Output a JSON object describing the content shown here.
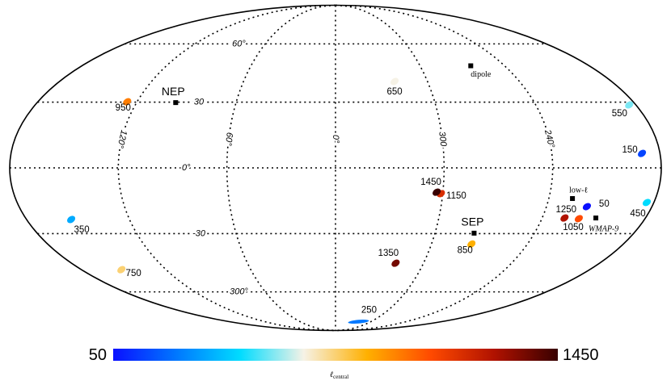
{
  "chart_data": {
    "type": "mollweide",
    "grid": true,
    "lat_ticks": [
      {
        "value": 60,
        "label": "60°"
      },
      30,
      {
        "value": 0,
        "label": "0°"
      },
      -30,
      {
        "value": -60,
        "label": "300°"
      }
    ],
    "lon_ticks": [
      {
        "value": 120,
        "label": "120°"
      },
      {
        "value": 60,
        "label": "60°"
      },
      {
        "value": 0,
        "label": "0°"
      },
      300,
      {
        "value": 240,
        "label": "240°"
      }
    ],
    "points": [
      {
        "ell": 50,
        "lon": 217,
        "lat": -17.5
      },
      {
        "ell": 150,
        "lon": 190,
        "lat": 6.5
      },
      {
        "ell": 250,
        "lon": 321,
        "lat": -80
      },
      {
        "ell": 350,
        "lon": 154,
        "lat": -23.4
      },
      {
        "ell": 450,
        "lon": 184,
        "lat": -15.6
      },
      {
        "ell": 550,
        "lon": 184,
        "lat": 28.7
      },
      {
        "ell": 650,
        "lon": 321.5,
        "lat": 40
      },
      {
        "ell": 750,
        "lon": 151.6,
        "lat": -47.8
      },
      {
        "ell": 850,
        "lon": 275,
        "lat": -35
      },
      {
        "ell": 950,
        "lon": 126,
        "lat": 30.2
      },
      {
        "ell": 1050,
        "lon": 218.5,
        "lat": -23
      },
      {
        "ell": 1150,
        "lon": 301,
        "lat": -11.6
      },
      {
        "ell": 1250,
        "lon": 227,
        "lat": -22.7
      },
      {
        "ell": 1350,
        "lon": 319,
        "lat": -44.5
      },
      {
        "ell": 1450,
        "lon": 303.5,
        "lat": -10.9
      }
    ],
    "markers": [
      {
        "label": "NEP",
        "lon": 96.4,
        "lat": 29.8
      },
      {
        "label": "SEP",
        "lon": 276.4,
        "lat": -29.8
      },
      {
        "label": "dipole",
        "lon": 264,
        "lat": 48
      },
      {
        "label": "low-ℓ",
        "lon": 226.7,
        "lat": -13.8
      },
      {
        "label": "WMAP-9",
        "lon": 208.8,
        "lat": -22.7
      }
    ],
    "colormap": [
      "#0a10ff",
      "#0078ff",
      "#00dcff",
      "#f6f2e6",
      "#ffb000",
      "#ff4a00",
      "#b01200",
      "#380000"
    ],
    "clim": [
      50,
      1450
    ],
    "cticks": [
      50,
      1450
    ],
    "colorbar_label": "ℓ",
    "colorbar_label_sub": "central"
  }
}
